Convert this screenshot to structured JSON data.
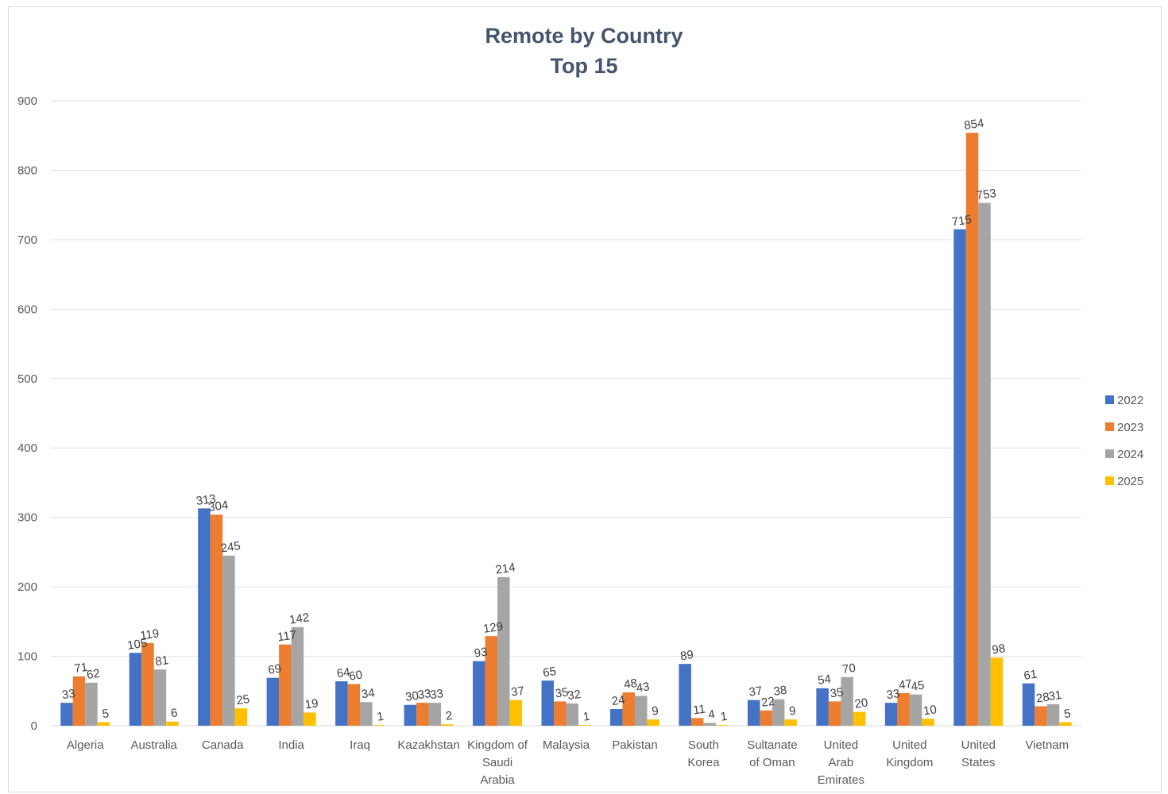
{
  "chart_data": {
    "type": "bar",
    "title": "Remote by Country",
    "subtitle": "Top 15",
    "xlabel": "",
    "ylabel": "",
    "ylim": [
      0,
      900
    ],
    "yticks": [
      "0",
      "100",
      "200",
      "300",
      "400",
      "500",
      "600",
      "700",
      "800",
      "900"
    ],
    "grid": true,
    "legend_position": "right",
    "categories": [
      "Algeria",
      "Australia",
      "Canada",
      "India",
      "Iraq",
      "Kazakhstan",
      "Kingdom of Saudi Arabia",
      "Malaysia",
      "Pakistan",
      "South Korea",
      "Sultanate of Oman",
      "United Arab Emirates",
      "United Kingdom",
      "United States",
      "Vietnam"
    ],
    "category_label_lines": [
      [
        "Algeria"
      ],
      [
        "Australia"
      ],
      [
        "Canada"
      ],
      [
        "India"
      ],
      [
        "Iraq"
      ],
      [
        "Kazakhstan"
      ],
      [
        "Kingdom of",
        "Saudi",
        "Arabia"
      ],
      [
        "Malaysia"
      ],
      [
        "Pakistan"
      ],
      [
        "South",
        "Korea"
      ],
      [
        "Sultanate",
        "of Oman"
      ],
      [
        "United",
        "Arab",
        "Emirates"
      ],
      [
        "United",
        "Kingdom"
      ],
      [
        "United",
        "States"
      ],
      [
        "Vietnam"
      ]
    ],
    "series": [
      {
        "name": "2022",
        "color": "#4472c4",
        "values": [
          33,
          105,
          313,
          69,
          64,
          30,
          93,
          65,
          24,
          89,
          37,
          54,
          33,
          715,
          61
        ]
      },
      {
        "name": "2023",
        "color": "#ed7d31",
        "values": [
          71,
          119,
          304,
          117,
          60,
          33,
          129,
          35,
          48,
          11,
          22,
          35,
          47,
          854,
          28
        ]
      },
      {
        "name": "2024",
        "color": "#a5a5a5",
        "values": [
          62,
          81,
          245,
          142,
          34,
          33,
          214,
          32,
          43,
          4,
          38,
          70,
          45,
          753,
          31
        ]
      },
      {
        "name": "2025",
        "color": "#ffc000",
        "values": [
          5,
          6,
          25,
          19,
          1,
          2,
          37,
          1,
          9,
          1,
          9,
          20,
          10,
          98,
          5
        ]
      }
    ]
  }
}
